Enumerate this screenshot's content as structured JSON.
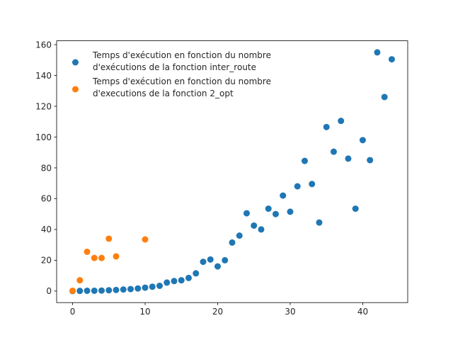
{
  "chart_data": {
    "type": "scatter",
    "title": "",
    "xlabel": "",
    "ylabel": "",
    "xlim": [
      -2.2,
      46.2
    ],
    "ylim": [
      -7.5,
      162.5
    ],
    "xticks": [
      0,
      10,
      20,
      30,
      40
    ],
    "yticks": [
      0,
      20,
      40,
      60,
      80,
      100,
      120,
      140,
      160
    ],
    "grid": false,
    "legend_position": "top-left",
    "series": [
      {
        "name": "Temps d'exécution en fonction du nombre d'exécutions de la fonction inter_route",
        "legend_lines": [
          "Temps d'exécution en fonction du nombre",
          "d'exécutions de la fonction inter_route"
        ],
        "color": "#1f77b4",
        "x": [
          0,
          1,
          2,
          3,
          4,
          5,
          6,
          7,
          8,
          9,
          10,
          11,
          12,
          13,
          14,
          15,
          16,
          17,
          18,
          19,
          20,
          21,
          22,
          23,
          24,
          25,
          26,
          27,
          28,
          29,
          30,
          31,
          32,
          33,
          34,
          35,
          36,
          37,
          38,
          39,
          40,
          41,
          42,
          43,
          44
        ],
        "y": [
          0.0,
          0.1,
          0.2,
          0.2,
          0.3,
          0.5,
          0.7,
          1.0,
          1.3,
          1.7,
          2.2,
          2.8,
          3.4,
          5.5,
          6.5,
          7.0,
          8.5,
          11.5,
          19.0,
          20.5,
          16.0,
          20.0,
          31.5,
          36.0,
          50.5,
          42.5,
          40.0,
          53.5,
          50.0,
          62.0,
          51.5,
          68.0,
          84.5,
          69.5,
          44.5,
          106.5,
          90.5,
          110.5,
          86.0,
          53.5,
          98.0,
          85.0,
          155.0,
          126.0,
          150.5
        ]
      },
      {
        "name": "Temps d'exécution en fonction du nombre d'executions de la fonction 2_opt",
        "legend_lines": [
          "Temps d'exécution en fonction du nombre",
          "d'executions de la fonction 2_opt"
        ],
        "color": "#ff7f0e",
        "x": [
          0,
          1,
          2,
          3,
          4,
          5,
          6,
          10
        ],
        "y": [
          0.2,
          7.0,
          25.5,
          21.5,
          21.5,
          34.0,
          22.5,
          33.5
        ]
      }
    ]
  }
}
